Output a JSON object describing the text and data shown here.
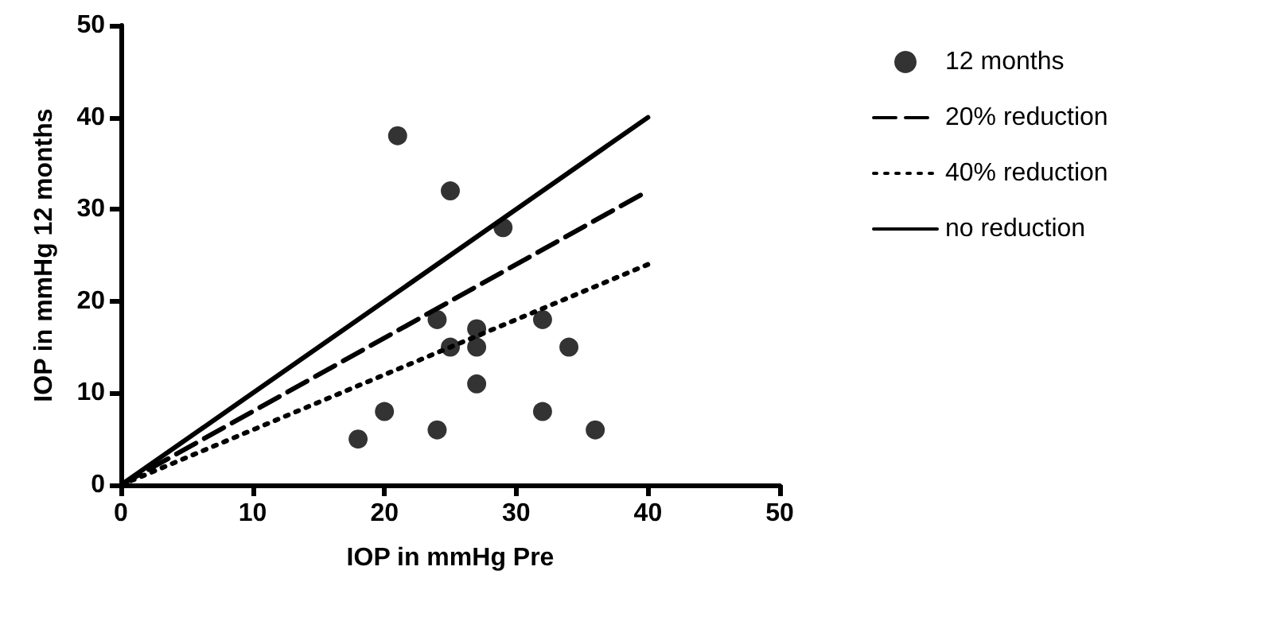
{
  "chart_data": {
    "type": "scatter",
    "xlabel": "IOP in mmHg Pre",
    "ylabel": "IOP in mmHg 12 months",
    "xlim": [
      0,
      50
    ],
    "xticks": [
      0,
      10,
      20,
      30,
      40,
      50
    ],
    "ylim": [
      0,
      50
    ],
    "yticks": [
      0,
      10,
      20,
      30,
      40,
      50
    ],
    "grid": false,
    "legend": "right",
    "series": [
      {
        "name": "12 months",
        "marker": "circle",
        "color": "#000000",
        "x": [
          21,
          25,
          29,
          24,
          27,
          32,
          25,
          27,
          34,
          27,
          20,
          32,
          24,
          36,
          18
        ],
        "values": [
          38,
          32,
          28,
          18,
          17,
          18,
          15,
          15,
          15,
          11,
          8,
          8,
          6,
          6,
          5
        ]
      },
      {
        "name": "20% reduction",
        "type": "line",
        "color": "#000000",
        "marker": "none",
        "line_style": "dashed",
        "x": [
          0,
          40
        ],
        "values": [
          0,
          32
        ]
      },
      {
        "name": "40% reduction",
        "type": "line",
        "color": "#000000",
        "marker": "none",
        "line_style": "dotted",
        "x": [
          0,
          40
        ],
        "values": [
          0,
          24
        ]
      },
      {
        "name": "no reduction",
        "type": "line",
        "color": "#000000",
        "marker": "none",
        "line_style": "solid",
        "x": [
          0,
          40
        ],
        "values": [
          0,
          40
        ]
      }
    ]
  }
}
